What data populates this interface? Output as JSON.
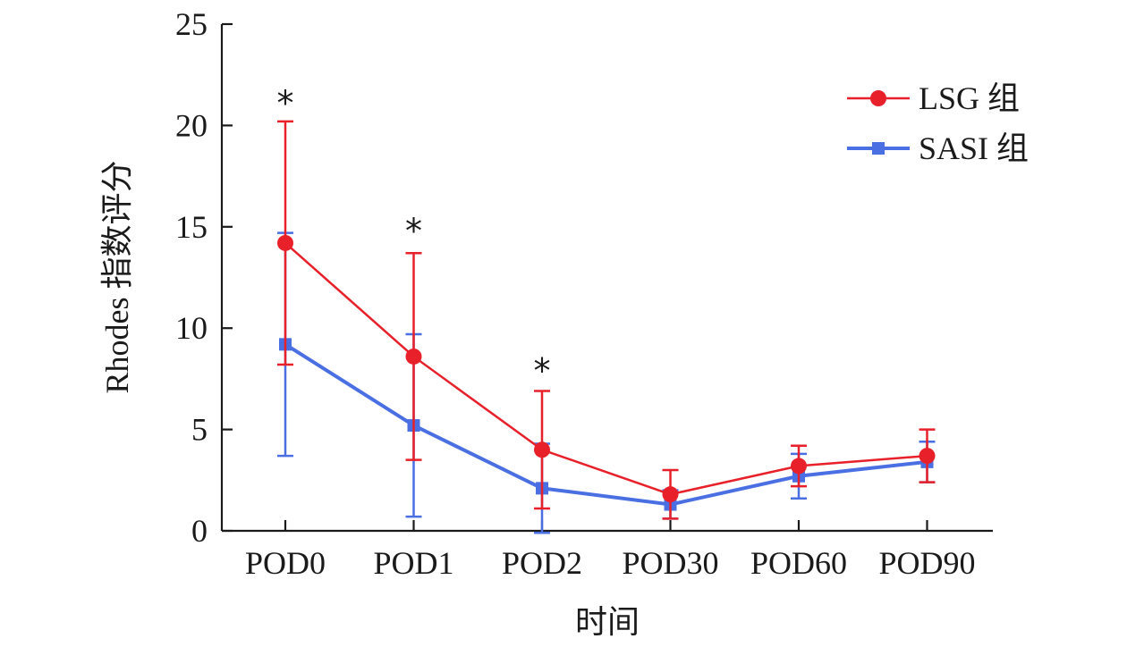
{
  "chart_data": {
    "type": "line",
    "categories": [
      "POD0",
      "POD1",
      "POD2",
      "POD30",
      "POD60",
      "POD90"
    ],
    "xlabel": "时间",
    "ylabel": "Rhodes 指数评分",
    "ylim": [
      0,
      25
    ],
    "yticks": [
      "0",
      "5",
      "10",
      "15",
      "20",
      "25"
    ],
    "grid": false,
    "legend_position": "top-right",
    "series": [
      {
        "name": "LSG 组",
        "color": "#e8202a",
        "marker": "circle",
        "values": [
          14.2,
          8.6,
          4.0,
          1.8,
          3.2,
          3.7
        ],
        "error": [
          6.0,
          5.1,
          2.9,
          1.2,
          1.0,
          1.3
        ]
      },
      {
        "name": "SASI 组",
        "color": "#4a6fe3",
        "marker": "square",
        "values": [
          9.2,
          5.2,
          2.1,
          1.3,
          2.7,
          3.4
        ],
        "error": [
          5.5,
          4.5,
          2.2,
          0.7,
          1.1,
          1.0
        ]
      }
    ],
    "annotations": [
      {
        "category": "POD0",
        "text": "*",
        "y": 21.5
      },
      {
        "category": "POD1",
        "text": "*",
        "y": 15.2
      },
      {
        "category": "POD2",
        "text": "*",
        "y": 8.3
      }
    ]
  }
}
